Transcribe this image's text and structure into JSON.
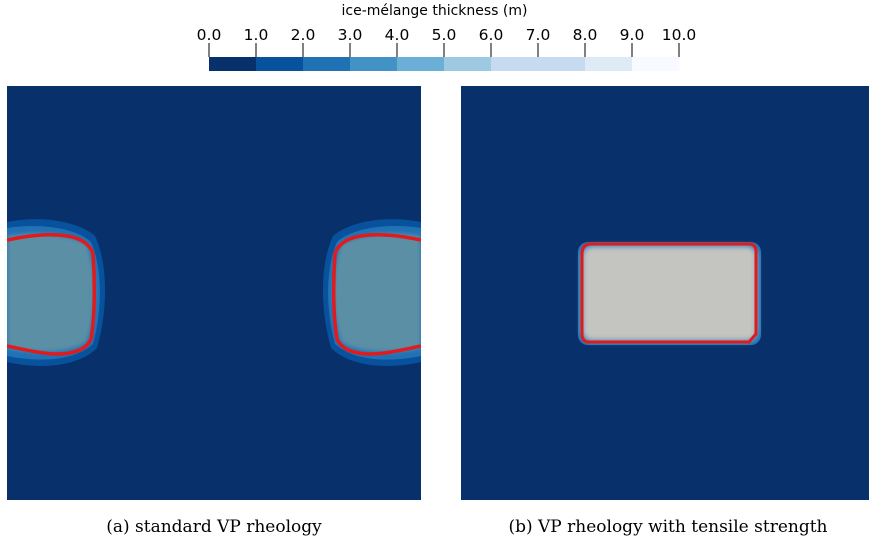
{
  "chart_data": [
    {
      "type": "heatmap",
      "colorbar": {
        "title": "ice-mélange thickness (m)",
        "ticks": [
          0.0,
          1.0,
          2.0,
          3.0,
          4.0,
          5.0,
          6.0,
          7.0,
          8.0,
          9.0,
          10.0
        ],
        "tick_labels": [
          "0.0",
          "1.0",
          "2.0",
          "3.0",
          "4.0",
          "5.0",
          "6.0",
          "7.0",
          "8.0",
          "9.0",
          "10.0"
        ],
        "range": [
          0,
          10
        ],
        "colors": [
          "#08306b",
          "#08519c",
          "#2171b5",
          "#4292c6",
          "#6baed6",
          "#9ecae1",
          "#c6dbef",
          "#c6dbef",
          "#deebf7",
          "#f7fbff"
        ],
        "orientation": "horizontal",
        "placement": "top-center"
      },
      "background_color": "#08306b",
      "contour_color": "#e31a1c"
    },
    {
      "type": "heatmap",
      "caption": "(a) standard VP rheology",
      "domain": {
        "x": [
          0,
          1
        ],
        "y": [
          0,
          1
        ]
      },
      "regions": [
        {
          "label": "left-blob",
          "x": [
            0.0,
            0.2
          ],
          "y": [
            0.38,
            0.66
          ],
          "thickness": 6.5
        },
        {
          "label": "right-blob",
          "x": [
            0.78,
            1.0
          ],
          "y": [
            0.38,
            0.66
          ],
          "thickness": 6.5
        }
      ],
      "background_color": "#08306b",
      "fill_color": "#5a8fa6"
    },
    {
      "type": "heatmap",
      "caption": "(b) VP rheology with tensile strength",
      "domain": {
        "x": [
          0,
          1
        ],
        "y": [
          0,
          1
        ]
      },
      "regions": [
        {
          "label": "central-block",
          "x": [
            0.3,
            0.7
          ],
          "y": [
            0.39,
            0.62
          ],
          "thickness": 10.0
        }
      ],
      "background_color": "#08306b",
      "fill_color": "#c4c4c0"
    }
  ]
}
